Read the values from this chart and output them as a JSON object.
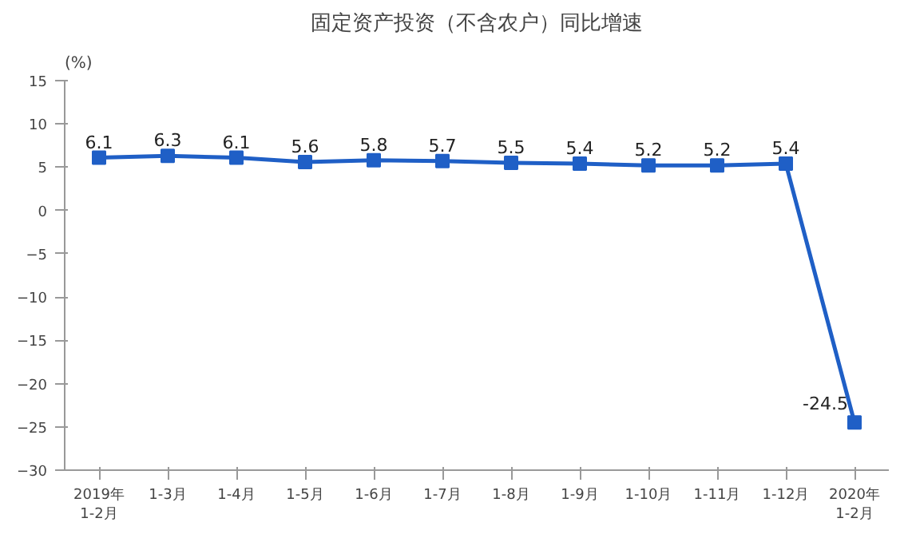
{
  "chart_data": {
    "type": "line",
    "title": "固定资产投资（不含农户）同比增速",
    "ylabel": "(%)",
    "categories": [
      "2019年\n1-2月",
      "1-3月",
      "1-4月",
      "1-5月",
      "1-6月",
      "1-7月",
      "1-8月",
      "1-9月",
      "1-10月",
      "1-11月",
      "1-12月",
      "2020年\n1-2月"
    ],
    "series": [
      {
        "color": "#1f5fc6",
        "values": [
          6.1,
          6.3,
          6.1,
          5.6,
          5.8,
          5.7,
          5.5,
          5.4,
          5.2,
          5.2,
          5.4,
          -24.5
        ]
      }
    ],
    "ylim": [
      -30,
      15
    ],
    "yticks": [
      -30,
      -25,
      -20,
      -15,
      -10,
      -5,
      0,
      5,
      10,
      15
    ],
    "marker": "square",
    "line_style": "solid",
    "data_labels": true,
    "grid": false
  }
}
